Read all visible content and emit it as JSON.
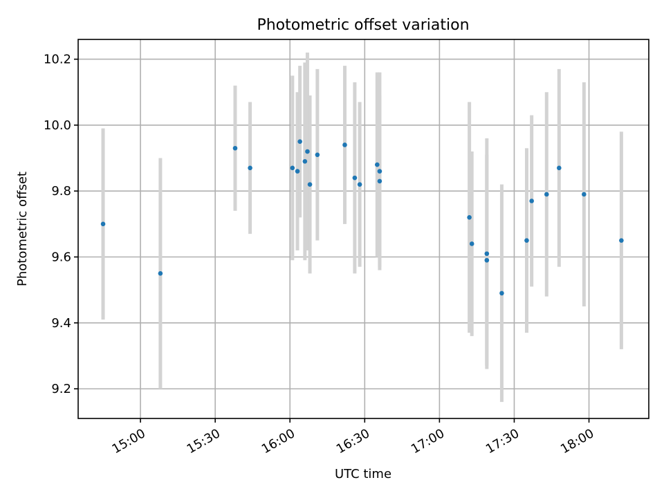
{
  "colors": {
    "point": "#1f77b4",
    "errorbar": "#d3d3d3",
    "grid": "#b0b0b0"
  },
  "chart_data": {
    "type": "scatter",
    "title": "Photometric offset variation",
    "xlabel": "UTC time",
    "ylabel": "Photometric offset",
    "grid": true,
    "legend": "none",
    "xlim": [
      "14:35",
      "18:24"
    ],
    "ylim": [
      9.11,
      10.26
    ],
    "x_ticks": [
      "15:00",
      "15:30",
      "16:00",
      "16:30",
      "17:00",
      "17:30",
      "18:00"
    ],
    "y_ticks": [
      9.2,
      9.4,
      9.6,
      9.8,
      10.0,
      10.2
    ],
    "y_tick_labels": [
      "9.2",
      "9.4",
      "9.6",
      "9.8",
      "10.0",
      "10.2"
    ],
    "points": [
      {
        "time": "14:45",
        "y": 9.7,
        "err": 0.29
      },
      {
        "time": "15:08",
        "y": 9.55,
        "err": 0.35
      },
      {
        "time": "15:38",
        "y": 9.93,
        "err": 0.19
      },
      {
        "time": "15:44",
        "y": 9.87,
        "err": 0.2
      },
      {
        "time": "16:01",
        "y": 9.87,
        "err": 0.28
      },
      {
        "time": "16:03",
        "y": 9.86,
        "err": 0.24
      },
      {
        "time": "16:04",
        "y": 9.95,
        "err": 0.23
      },
      {
        "time": "16:06",
        "y": 9.89,
        "err": 0.3
      },
      {
        "time": "16:07",
        "y": 9.92,
        "err": 0.3
      },
      {
        "time": "16:08",
        "y": 9.82,
        "err": 0.27
      },
      {
        "time": "16:11",
        "y": 9.91,
        "err": 0.26
      },
      {
        "time": "16:22",
        "y": 9.94,
        "err": 0.24
      },
      {
        "time": "16:26",
        "y": 9.84,
        "err": 0.29
      },
      {
        "time": "16:28",
        "y": 9.82,
        "err": 0.25
      },
      {
        "time": "16:35",
        "y": 9.88,
        "err": 0.28
      },
      {
        "time": "16:36",
        "y": 9.86,
        "err": 0.3
      },
      {
        "time": "16:36",
        "y": 9.83,
        "err": 0.26
      },
      {
        "time": "17:12",
        "y": 9.72,
        "err": 0.35
      },
      {
        "time": "17:13",
        "y": 9.64,
        "err": 0.28
      },
      {
        "time": "17:19",
        "y": 9.61,
        "err": 0.35
      },
      {
        "time": "17:19",
        "y": 9.59,
        "err": 0.32
      },
      {
        "time": "17:25",
        "y": 9.49,
        "err": 0.33
      },
      {
        "time": "17:35",
        "y": 9.65,
        "err": 0.28
      },
      {
        "time": "17:37",
        "y": 9.77,
        "err": 0.26
      },
      {
        "time": "17:43",
        "y": 9.79,
        "err": 0.31
      },
      {
        "time": "17:48",
        "y": 9.87,
        "err": 0.3
      },
      {
        "time": "17:58",
        "y": 9.79,
        "err": 0.34
      },
      {
        "time": "18:13",
        "y": 9.65,
        "err": 0.33
      }
    ]
  }
}
